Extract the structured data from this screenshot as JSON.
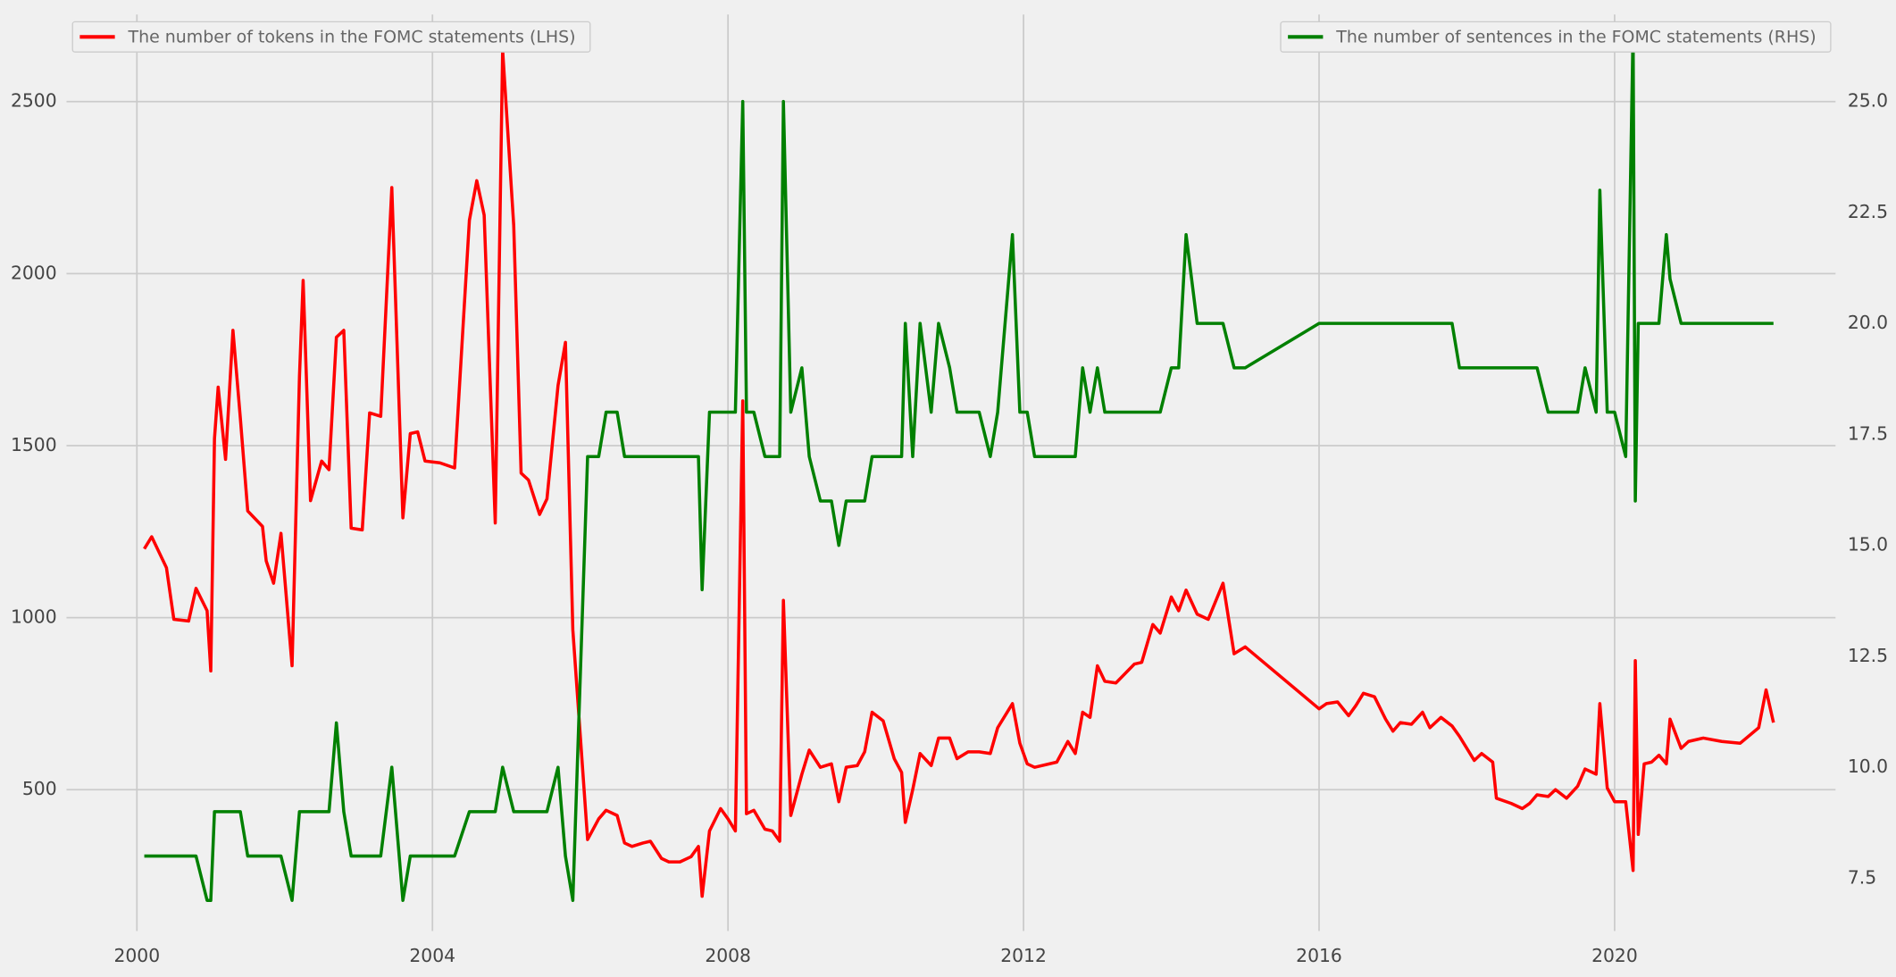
{
  "chart_data": {
    "type": "line",
    "x": [
      2000.1,
      2000.2,
      2000.4,
      2000.5,
      2000.7,
      2000.8,
      2000.95,
      2001.0,
      2001.05,
      2001.1,
      2001.2,
      2001.3,
      2001.4,
      2001.5,
      2001.7,
      2001.75,
      2001.85,
      2001.95,
      2002.1,
      2002.2,
      2002.25,
      2002.35,
      2002.5,
      2002.6,
      2002.7,
      2002.8,
      2002.9,
      2003.05,
      2003.15,
      2003.3,
      2003.45,
      2003.6,
      2003.7,
      2003.8,
      2003.9,
      2004.1,
      2004.3,
      2004.5,
      2004.6,
      2004.7,
      2004.85,
      2004.95,
      2005.1,
      2005.2,
      2005.3,
      2005.45,
      2005.55,
      2005.7,
      2005.8,
      2005.9,
      2006.1,
      2006.25,
      2006.35,
      2006.5,
      2006.6,
      2006.7,
      2006.85,
      2006.95,
      2007.1,
      2007.2,
      2007.35,
      2007.5,
      2007.6,
      2007.65,
      2007.75,
      2007.9,
      2008.0,
      2008.1,
      2008.2,
      2008.25,
      2008.35,
      2008.5,
      2008.6,
      2008.7,
      2008.75,
      2008.85,
      2009.0,
      2009.1,
      2009.25,
      2009.4,
      2009.5,
      2009.6,
      2009.75,
      2009.85,
      2009.95,
      2010.1,
      2010.25,
      2010.35,
      2010.4,
      2010.5,
      2010.6,
      2010.75,
      2010.85,
      2011.0,
      2011.1,
      2011.25,
      2011.4,
      2011.55,
      2011.65,
      2011.85,
      2011.95,
      2012.05,
      2012.15,
      2012.45,
      2012.6,
      2012.7,
      2012.8,
      2012.9,
      2013.0,
      2013.1,
      2013.25,
      2013.5,
      2013.6,
      2013.75,
      2013.85,
      2014.0,
      2014.1,
      2014.2,
      2014.35,
      2014.5,
      2014.7,
      2014.85,
      2015.0,
      2016.0,
      2016.1,
      2016.25,
      2016.4,
      2016.5,
      2016.6,
      2016.75,
      2016.9,
      2017.0,
      2017.1,
      2017.25,
      2017.4,
      2017.5,
      2017.65,
      2017.8,
      2017.9,
      2018.1,
      2018.2,
      2018.35,
      2018.4,
      2018.6,
      2018.75,
      2018.85,
      2018.95,
      2019.1,
      2019.2,
      2019.35,
      2019.5,
      2019.6,
      2019.75,
      2019.8,
      2019.9,
      2020.0,
      2020.15,
      2020.25,
      2020.28,
      2020.32,
      2020.4,
      2020.5,
      2020.6,
      2020.7,
      2020.75,
      2020.9,
      2021.0,
      2021.2,
      2021.45,
      2021.7,
      2021.95,
      2022.05,
      2022.15
    ],
    "xlim": [
      1999.26,
      2022.99
    ],
    "xticks": [
      2000,
      2004,
      2008,
      2012,
      2016,
      2020
    ],
    "ylim": [
      89,
      2753
    ],
    "yticks": [
      500,
      1000,
      1500,
      2000,
      2500
    ],
    "y2lim": [
      6.31,
      26.96
    ],
    "y2ticks": [
      7.5,
      {
        "value": 10,
        "label": "10.0"
      },
      12.5,
      {
        "value": 15,
        "label": "15.0"
      },
      17.5,
      {
        "value": 20,
        "label": "20.0"
      },
      22.5,
      {
        "value": 25,
        "label": "25.0"
      }
    ],
    "grid": true,
    "series": [
      {
        "name": "The number of tokens in the FOMC statements (LHS)",
        "color": "#ff0000",
        "legend": "upper left",
        "values": [
          1200,
          1235,
          1145,
          995,
          990,
          1085,
          1020,
          845,
          1520,
          1670,
          1460,
          1835,
          1580,
          1310,
          1265,
          1165,
          1100,
          1245,
          860,
          1700,
          1980,
          1340,
          1455,
          1430,
          1815,
          1835,
          1260,
          1255,
          1595,
          1585,
          2250,
          1290,
          1535,
          1540,
          1455,
          1450,
          1435,
          2155,
          2270,
          2170,
          1275,
          2650,
          2140,
          1420,
          1400,
          1300,
          1345,
          1675,
          1800,
          965,
          355,
          415,
          440,
          425,
          345,
          335,
          345,
          350,
          300,
          290,
          290,
          305,
          335,
          190,
          380,
          445,
          415,
          380,
          1630,
          430,
          440,
          385,
          380,
          350,
          1050,
          425,
          545,
          615,
          565,
          575,
          465,
          565,
          570,
          610,
          725,
          700,
          590,
          550,
          405,
          500,
          605,
          570,
          650,
          650,
          590,
          610,
          610,
          605,
          680,
          750,
          635,
          575,
          565,
          580,
          640,
          605,
          725,
          710,
          860,
          815,
          810,
          865,
          870,
          980,
          955,
          1060,
          1020,
          1080,
          1010,
          995,
          1100,
          895,
          915,
          735,
          750,
          755,
          715,
          745,
          780,
          770,
          705,
          670,
          695,
          690,
          725,
          680,
          710,
          685,
          655,
          585,
          605,
          580,
          475,
          460,
          445,
          460,
          485,
          480,
          500,
          475,
          510,
          560,
          545,
          750,
          505,
          465,
          465,
          265,
          875,
          370,
          575,
          580,
          600,
          575,
          705,
          620,
          640,
          650,
          640,
          635,
          680,
          790,
          695
        ]
      },
      {
        "name": "The number of sentences in the FOMC statements (RHS)",
        "color": "#008000",
        "axis": "y2",
        "legend": "upper right",
        "values": [
          8,
          8,
          8,
          8,
          8,
          8,
          7,
          7,
          9,
          9,
          9,
          9,
          9,
          8,
          8,
          8,
          8,
          8,
          7,
          9,
          9,
          9,
          9,
          9,
          11,
          9,
          8,
          8,
          8,
          8,
          10,
          7,
          8,
          8,
          8,
          8,
          8,
          9,
          9,
          9,
          9,
          10,
          9,
          9,
          9,
          9,
          9,
          10,
          8,
          7,
          17,
          17,
          18,
          18,
          17,
          17,
          17,
          17,
          17,
          17,
          17,
          17,
          17,
          14,
          18,
          18,
          18,
          18,
          25,
          18,
          18,
          17,
          17,
          17,
          25,
          18,
          19,
          17,
          16,
          16,
          15,
          16,
          16,
          16,
          17,
          17,
          17,
          17,
          20,
          17,
          20,
          18,
          20,
          19,
          18,
          18,
          18,
          17,
          18,
          22,
          18,
          18,
          17,
          17,
          17,
          17,
          19,
          18,
          19,
          18,
          18,
          18,
          18,
          18,
          18,
          19,
          19,
          22,
          20,
          20,
          20,
          19,
          19,
          20,
          20,
          20,
          20,
          20,
          20,
          20,
          20,
          20,
          20,
          20,
          20,
          20,
          20,
          20,
          19,
          19,
          19,
          19,
          19,
          19,
          19,
          19,
          19,
          18,
          18,
          18,
          18,
          19,
          18,
          23,
          18,
          18,
          17,
          26.6,
          16,
          20,
          20,
          20,
          20,
          22,
          21,
          20,
          20,
          20,
          20,
          20,
          20,
          20,
          20
        ]
      }
    ]
  }
}
